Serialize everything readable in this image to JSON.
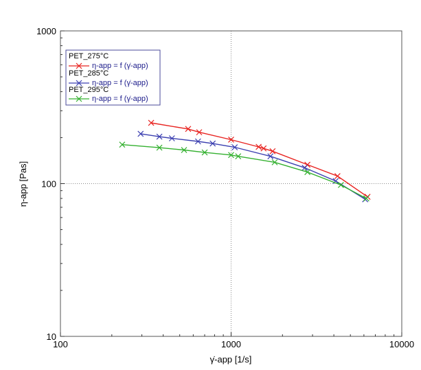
{
  "chart_data": {
    "type": "line",
    "xscale": "log",
    "yscale": "log",
    "xlim": [
      100,
      10000
    ],
    "ylim": [
      10,
      1000
    ],
    "xlabel": "γ̇-app  [1/s]",
    "ylabel": "η-app  [Pas]",
    "xticks": [
      {
        "value": 100,
        "label": "100"
      },
      {
        "value": 1000,
        "label": "1000"
      },
      {
        "value": 10000,
        "label": "10000"
      }
    ],
    "yticks": [
      {
        "value": 10,
        "label": "10"
      },
      {
        "value": 100,
        "label": "100"
      },
      {
        "value": 1000,
        "label": "1000"
      }
    ],
    "gridlines": {
      "x": [
        1000
      ],
      "y": [
        100
      ]
    },
    "series": [
      {
        "name": "PET_275°C",
        "legend_label": "η-app = f (γ̇-app)",
        "color": "#e8221f",
        "x": [
          340,
          560,
          650,
          1000,
          1450,
          1550,
          1750,
          2800,
          4200,
          6300
        ],
        "y": [
          250,
          228,
          217,
          194,
          174,
          170,
          163,
          133,
          112,
          82
        ]
      },
      {
        "name": "PET_285°C",
        "legend_label": "η-app = f (γ̇-app)",
        "color": "#3b3fb0",
        "x": [
          295,
          380,
          450,
          640,
          780,
          1050,
          1700,
          2700,
          4100,
          6100
        ],
        "y": [
          212,
          203,
          198,
          189,
          183,
          173,
          151,
          127,
          104,
          79
        ]
      },
      {
        "name": "PET_295°C",
        "legend_label": "η-app = f (γ̇-app)",
        "color": "#33b02f",
        "x": [
          230,
          380,
          530,
          700,
          1000,
          1100,
          1800,
          2800,
          4400,
          6200
        ],
        "y": [
          180,
          172,
          166,
          160,
          154,
          151,
          138,
          119,
          98,
          80
        ]
      }
    ]
  }
}
